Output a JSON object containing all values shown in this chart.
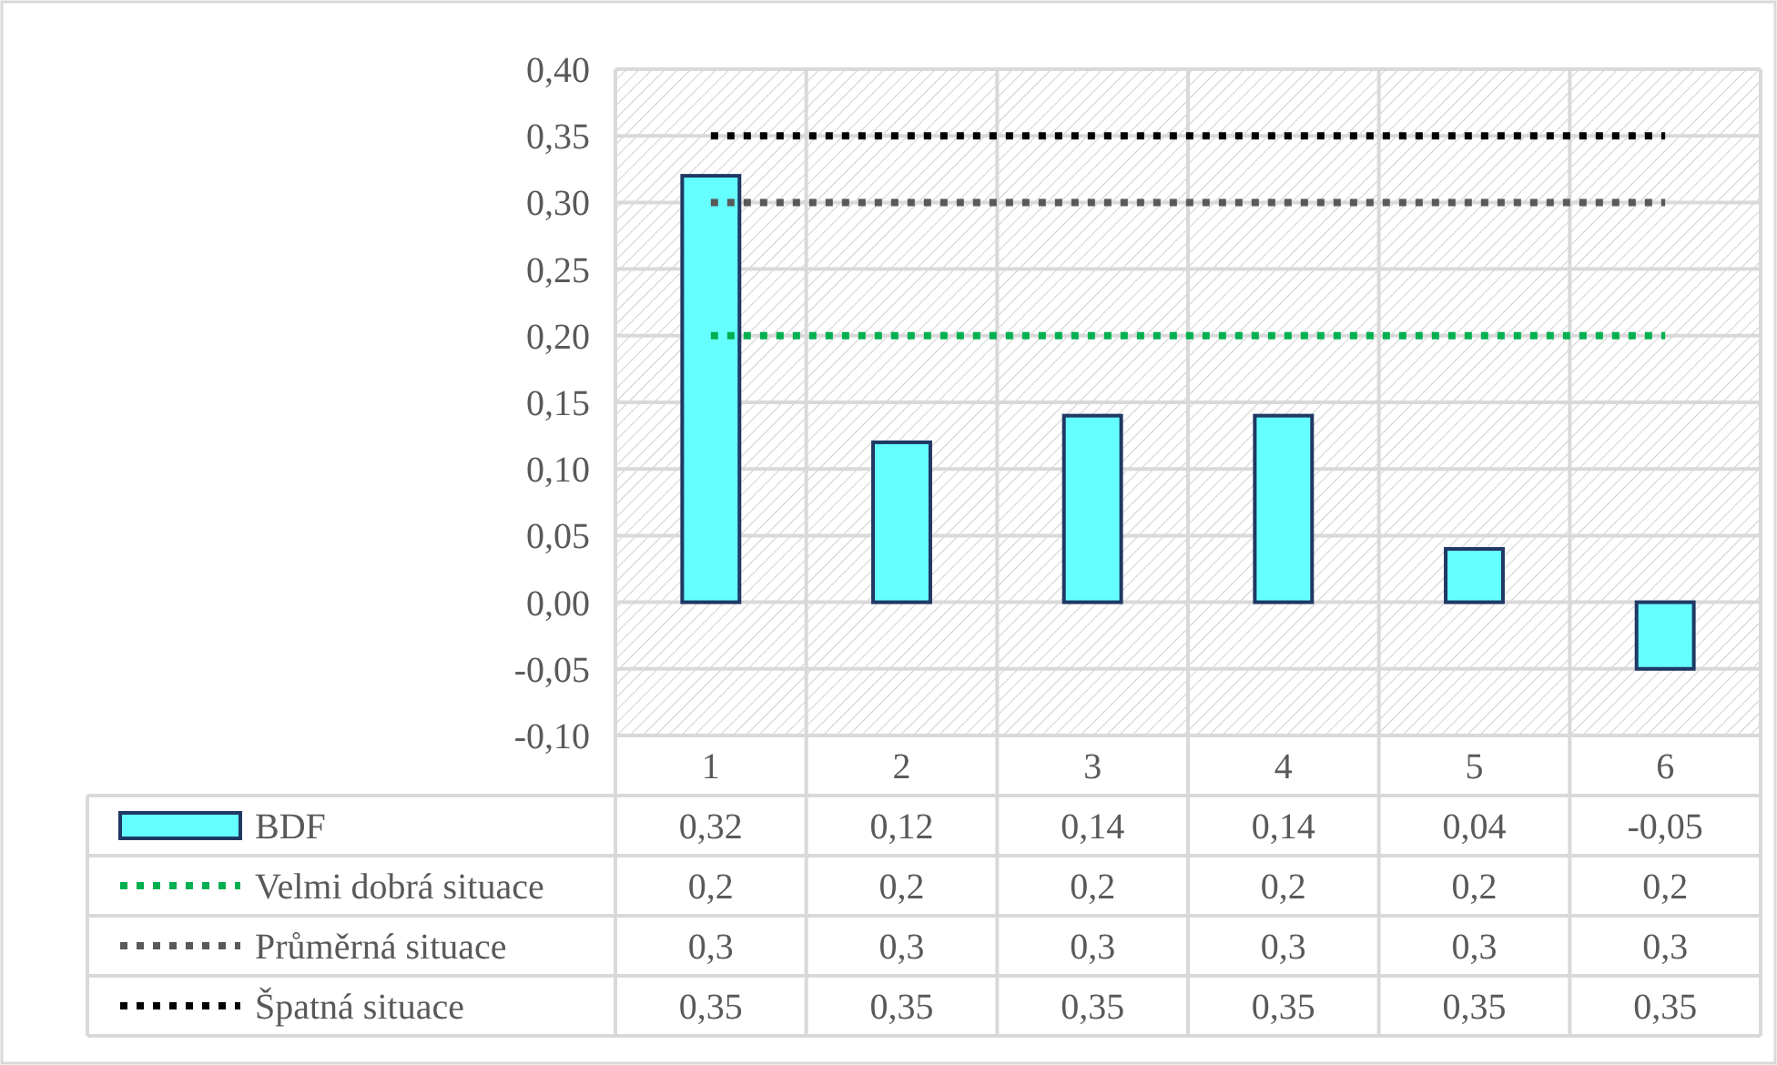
{
  "chart_data": {
    "type": "bar",
    "categories": [
      "1",
      "2",
      "3",
      "4",
      "5",
      "6"
    ],
    "series": [
      {
        "name": "BDF",
        "color": "#66ffff",
        "values": [
          0.32,
          0.12,
          0.14,
          0.14,
          0.04,
          -0.05
        ],
        "value_labels": [
          "0,32",
          "0,12",
          "0,14",
          "0,14",
          "0,04",
          "-0,05"
        ]
      },
      {
        "name": "Velmi dobrá situace",
        "type": "line",
        "color": "#00b050",
        "line_style": "dotted",
        "values": [
          0.2,
          0.2,
          0.2,
          0.2,
          0.2,
          0.2
        ],
        "value_labels": [
          "0,2",
          "0,2",
          "0,2",
          "0,2",
          "0,2",
          "0,2"
        ]
      },
      {
        "name": "Průměrná situace",
        "type": "line",
        "color": "#595959",
        "line_style": "dotted",
        "values": [
          0.3,
          0.3,
          0.3,
          0.3,
          0.3,
          0.3
        ],
        "value_labels": [
          "0,3",
          "0,3",
          "0,3",
          "0,3",
          "0,3",
          "0,3"
        ]
      },
      {
        "name": "Špatná situace",
        "type": "line",
        "color": "#000000",
        "line_style": "dotted",
        "values": [
          0.35,
          0.35,
          0.35,
          0.35,
          0.35,
          0.35
        ],
        "value_labels": [
          "0,35",
          "0,35",
          "0,35",
          "0,35",
          "0,35",
          "0,35"
        ]
      }
    ],
    "ylim": [
      -0.1,
      0.4
    ],
    "yticks": [
      {
        "value": -0.1,
        "label": "-0,10"
      },
      {
        "value": -0.05,
        "label": "-0,05"
      },
      {
        "value": 0,
        "label": "0,00"
      },
      {
        "value": 0.05,
        "label": "0,05"
      },
      {
        "value": 0.1,
        "label": "0,10"
      },
      {
        "value": 0.15,
        "label": "0,15"
      },
      {
        "value": 0.2,
        "label": "0,20"
      },
      {
        "value": 0.25,
        "label": "0,25"
      },
      {
        "value": 0.3,
        "label": "0,30"
      },
      {
        "value": 0.35,
        "label": "0,35"
      },
      {
        "value": 0.4,
        "label": "0,40"
      }
    ],
    "grid": true,
    "legend": "bottom",
    "marker": "none"
  }
}
